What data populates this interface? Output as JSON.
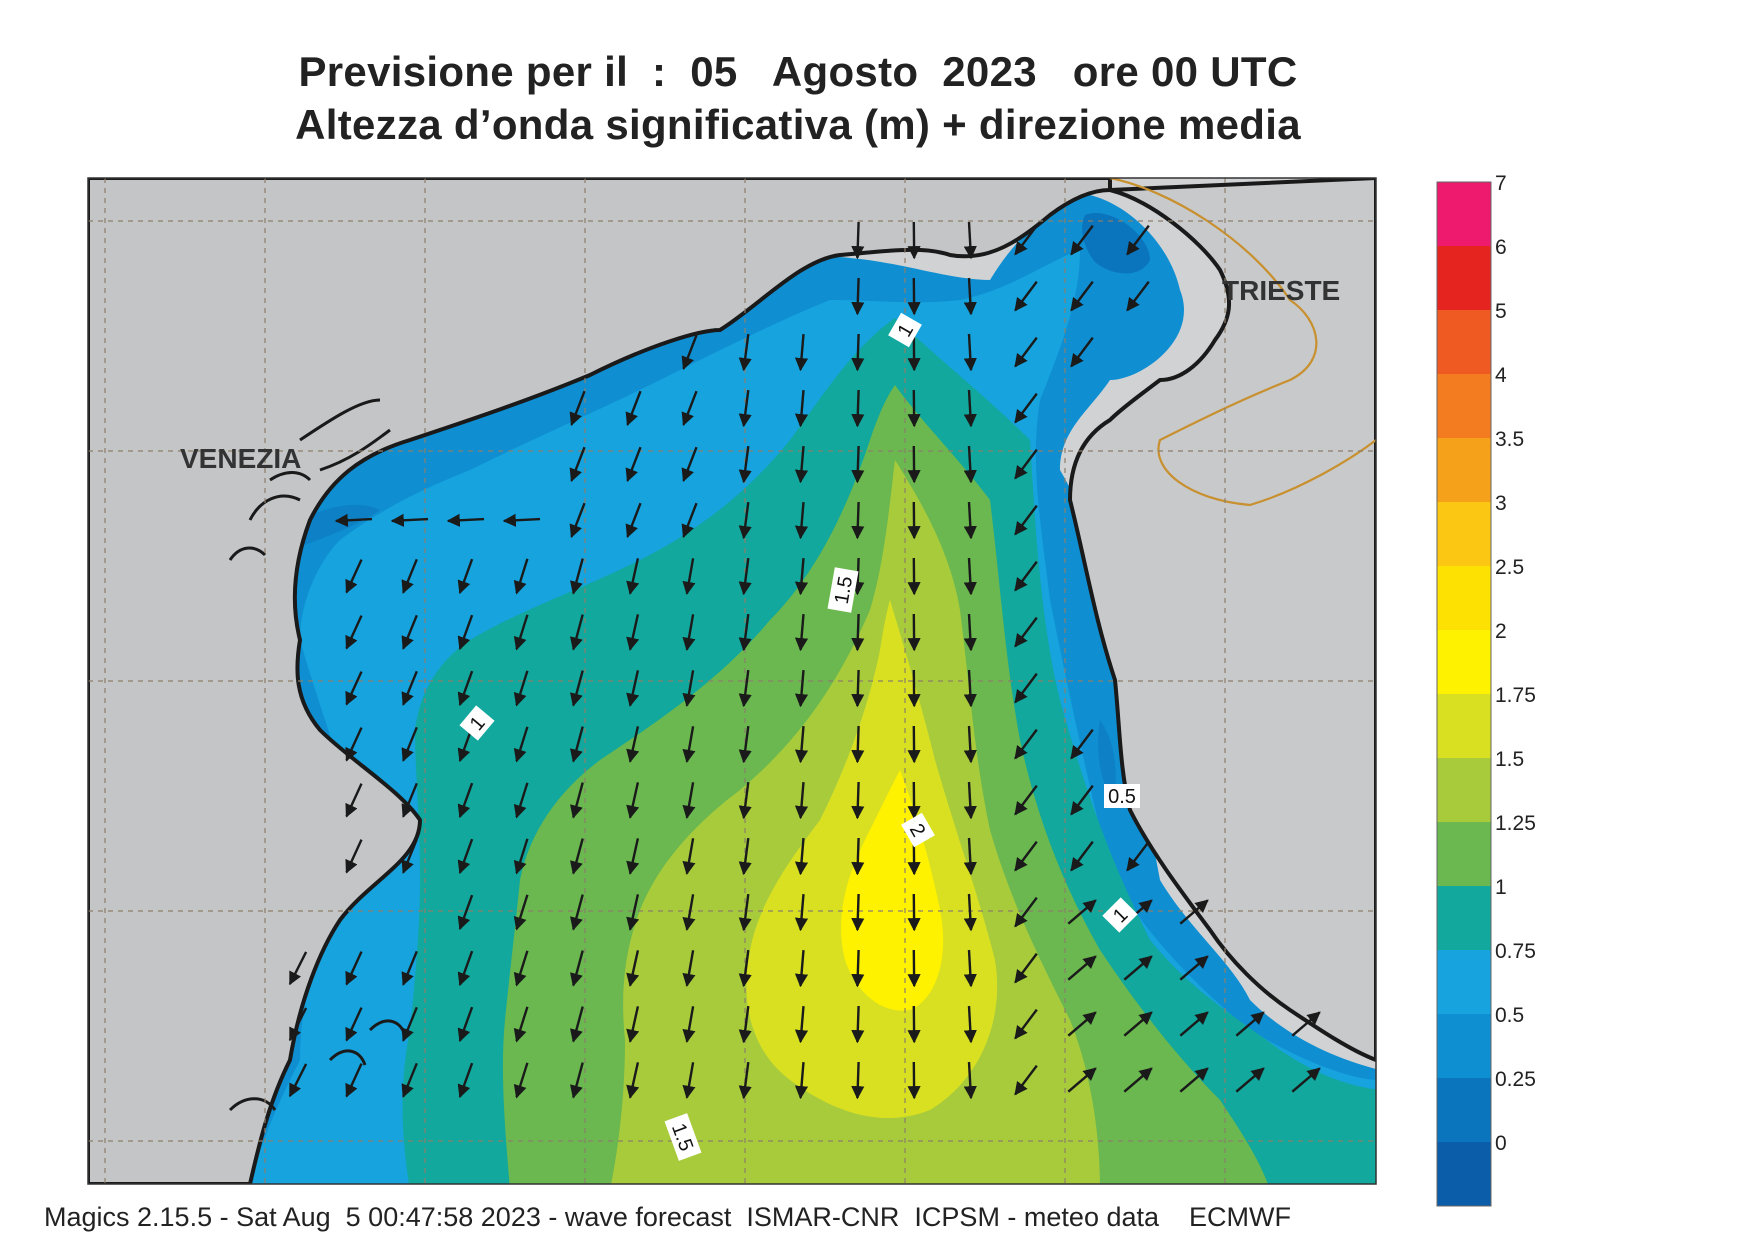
{
  "title": {
    "line1": "Previsione per il  :  05   Agosto  2023   ore 00 UTC",
    "line2": "Altezza d’onda significativa (m) + direzione media"
  },
  "map": {
    "cities": [
      "VENEZIA",
      "TRIESTE"
    ],
    "contour_labels": [
      "1",
      "1.5",
      "1",
      "2",
      "1.5",
      "0.5",
      "1"
    ],
    "field": "significant wave height (m)",
    "arrows": "mean wave direction"
  },
  "colorbar": {
    "ticks": [
      "7",
      "6",
      "5",
      "4",
      "3.5",
      "3",
      "2.5",
      "2",
      "1.75",
      "1.5",
      "1.25",
      "1",
      "0.75",
      "0.5",
      "0.25",
      "0"
    ],
    "colors": [
      "#ee1a6e",
      "#e52420",
      "#ef5a22",
      "#f47c20",
      "#f6a11a",
      "#fbc712",
      "#fde103",
      "#fff200",
      "#d9e021",
      "#a8cb3b",
      "#6ab84f",
      "#12a89d",
      "#16a3de",
      "#0d8fd2",
      "#0a74bd",
      "#0b5ca9"
    ]
  },
  "footer": "Magics 2.15.5 - Sat Aug  5 00:47:58 2023 - wave forecast  ISMAR-CNR  ICPSM - meteo data    ECMWF"
}
